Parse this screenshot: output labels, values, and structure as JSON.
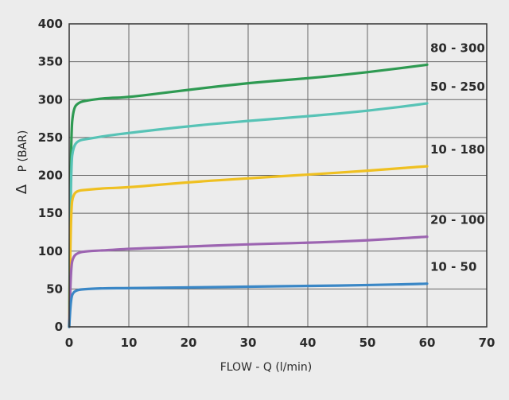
{
  "chart_data": {
    "type": "line",
    "xlabel": "FLOW - Q (l/min)",
    "ylabel": "P (BAR)",
    "ylabel_symbol": "Δ",
    "xlim": [
      0,
      70
    ],
    "ylim": [
      0,
      400
    ],
    "xticks": [
      0,
      10,
      20,
      30,
      40,
      50,
      60,
      70
    ],
    "yticks": [
      0,
      50,
      100,
      150,
      200,
      250,
      300,
      350,
      400
    ],
    "grid": true,
    "legend": "series labels at right end of each curve",
    "series": [
      {
        "name": "80 - 300",
        "color": "#2e9a52",
        "x": [
          0,
          0.3,
          0.7,
          1.5,
          3,
          6,
          10,
          20,
          30,
          40,
          50,
          60
        ],
        "y": [
          0,
          255,
          288,
          296,
          299,
          302,
          303,
          313,
          322,
          328,
          336,
          346
        ]
      },
      {
        "name": "50 - 250",
        "color": "#57c3b6",
        "x": [
          0,
          0.3,
          0.7,
          1.5,
          3,
          6,
          10,
          20,
          30,
          40,
          50,
          60
        ],
        "y": [
          0,
          215,
          238,
          246,
          248,
          252,
          256,
          265,
          272,
          278,
          285,
          295
        ]
      },
      {
        "name": "10 - 180",
        "color": "#efc021",
        "x": [
          0,
          0.3,
          0.7,
          1.5,
          3,
          6,
          10,
          20,
          30,
          40,
          50,
          60
        ],
        "y": [
          0,
          158,
          175,
          180,
          181,
          183,
          184,
          191,
          196,
          201,
          206,
          212
        ]
      },
      {
        "name": "20 - 100",
        "color": "#9c64b1",
        "x": [
          0,
          0.3,
          0.7,
          1.5,
          3,
          6,
          10,
          20,
          30,
          40,
          50,
          60
        ],
        "y": [
          0,
          80,
          93,
          98,
          100,
          101,
          103,
          106,
          109,
          111,
          114,
          119
        ]
      },
      {
        "name": "10 - 50",
        "color": "#3a87c6",
        "x": [
          0,
          0.3,
          0.7,
          1.5,
          3,
          6,
          10,
          20,
          30,
          40,
          50,
          60
        ],
        "y": [
          0,
          38,
          46,
          49,
          50,
          51,
          51,
          52,
          53,
          54,
          55,
          57
        ]
      }
    ]
  }
}
